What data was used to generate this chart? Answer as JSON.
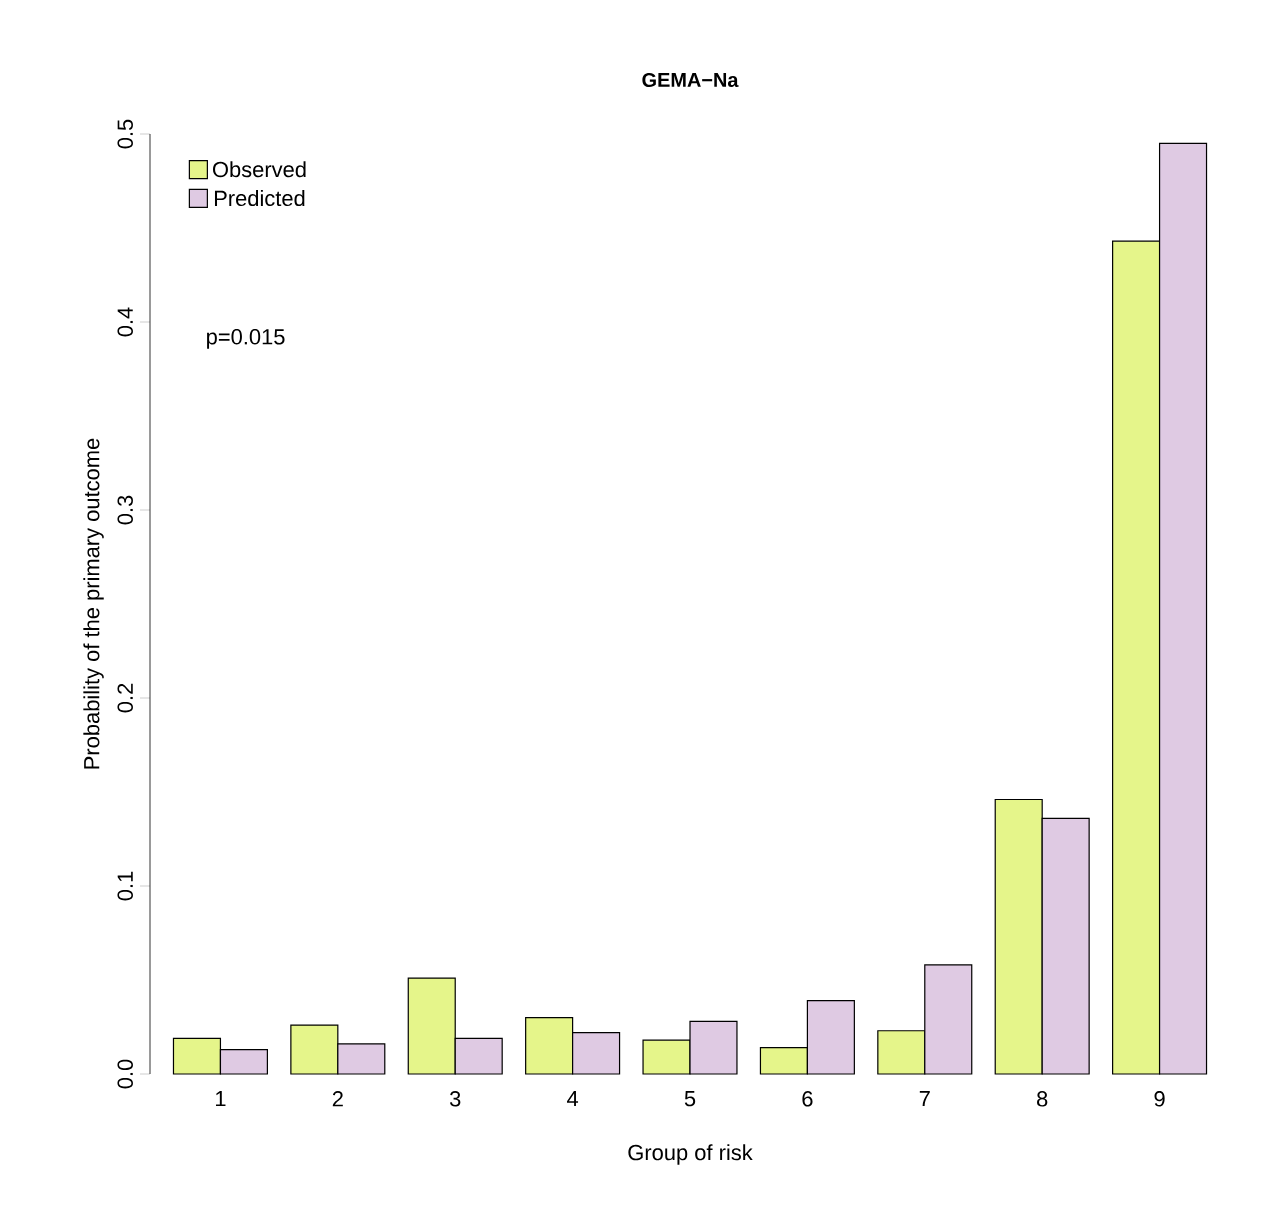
{
  "chart_data": {
    "type": "bar",
    "title": "GEMA−Na",
    "xlabel": "Group of risk",
    "ylabel": "Probability of the primary outcome",
    "categories": [
      "1",
      "2",
      "3",
      "4",
      "5",
      "6",
      "7",
      "8",
      "9"
    ],
    "series": [
      {
        "name": "Observed",
        "color": "#e5f58a",
        "values": [
          0.019,
          0.026,
          0.051,
          0.03,
          0.018,
          0.014,
          0.023,
          0.146,
          0.443
        ]
      },
      {
        "name": "Predicted",
        "color": "#dfcae3",
        "values": [
          0.013,
          0.016,
          0.019,
          0.022,
          0.028,
          0.039,
          0.058,
          0.136,
          0.495
        ]
      }
    ],
    "ylim": [
      0,
      0.5
    ],
    "yticks": [
      {
        "value": 0,
        "label": "0.0"
      },
      {
        "value": 0.1,
        "label": "0.1"
      },
      {
        "value": 0.2,
        "label": "0.2"
      },
      {
        "value": 0.3,
        "label": "0.3"
      },
      {
        "value": 0.4,
        "label": "0.4"
      },
      {
        "value": 0.5,
        "label": "0.5"
      }
    ],
    "legend": "top left",
    "grid": false,
    "annotations": [
      "p=0.015"
    ]
  }
}
